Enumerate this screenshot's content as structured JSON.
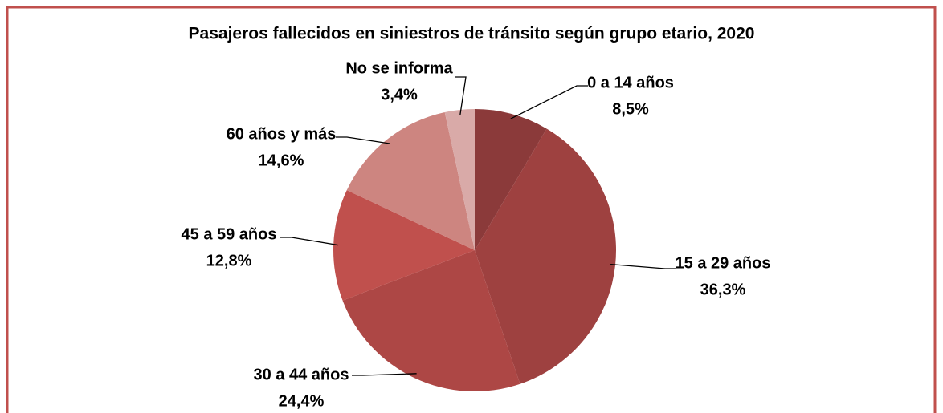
{
  "chart_data": {
    "type": "pie",
    "title": "Pasajeros fallecidos en siniestros de tránsito según grupo etario, 2020",
    "categories": [
      "0 a 14 años",
      "15 a 29 años",
      "30 a 44 años",
      "45 a 59 años",
      "60 años y más",
      "No se informa"
    ],
    "values": [
      8.5,
      36.3,
      24.4,
      12.8,
      14.6,
      3.4
    ],
    "value_labels": [
      "8,5%",
      "36,3%",
      "24,4%",
      "12,8%",
      "14,6%",
      "3,4%"
    ],
    "colors": [
      "#8b3a3a",
      "#9e4140",
      "#ad4745",
      "#c0504d",
      "#cd8580",
      "#d9aaa8"
    ]
  }
}
